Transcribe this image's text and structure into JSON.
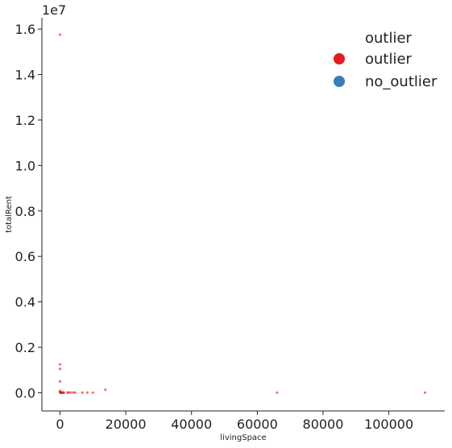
{
  "chart_data": {
    "type": "scatter",
    "title": "",
    "xlabel": "livingSpace",
    "ylabel": "totalRent",
    "y_offset_label": "1e7",
    "y_scale": 10000000,
    "xlim": [
      -5500,
      117000
    ],
    "ylim": [
      -800000,
      16500000
    ],
    "x_ticks": [
      0,
      20000,
      40000,
      60000,
      80000,
      100000
    ],
    "x_tick_labels": [
      "0",
      "20000",
      "40000",
      "60000",
      "80000",
      "100000"
    ],
    "y_ticks": [
      0,
      2000000,
      4000000,
      6000000,
      8000000,
      10000000,
      12000000,
      14000000,
      16000000
    ],
    "y_tick_labels": [
      "0.0",
      "0.2",
      "0.4",
      "0.6",
      "0.8",
      "1.0",
      "1.2",
      "1.4",
      "1.6"
    ],
    "grid": false,
    "legend": {
      "title": "outlier",
      "placement": "top-right",
      "entries": [
        {
          "label": "outlier",
          "color": "#e41a1c"
        },
        {
          "label": "no_outlier",
          "color": "#377eb8"
        }
      ]
    },
    "series": [
      {
        "name": "outlier",
        "color": "#e41a1c",
        "x": [
          0,
          0,
          0,
          0,
          0,
          0,
          50,
          100,
          150,
          200,
          300,
          400,
          500,
          600,
          800,
          1000,
          1200,
          2300,
          2600,
          3200,
          4000,
          4600,
          6800,
          8300,
          10000,
          13800,
          66000,
          111000
        ],
        "y": [
          15750000,
          1250000,
          1050000,
          500000,
          80000,
          30000,
          20000,
          10000,
          15000,
          5000,
          10000,
          8000,
          12000,
          6000,
          9000,
          7000,
          5000,
          10000,
          8000,
          12000,
          9000,
          7000,
          6000,
          8000,
          5000,
          130000,
          5000,
          5000
        ]
      }
    ]
  }
}
